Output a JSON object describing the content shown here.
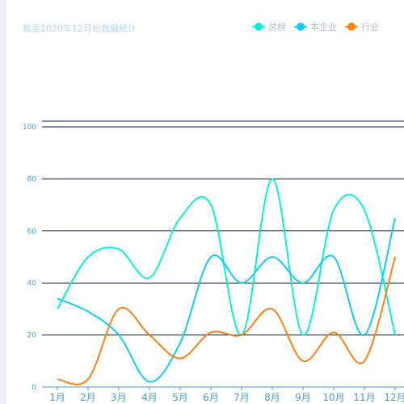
{
  "chart_data": {
    "type": "line",
    "subtitle": "截至2020年12月份数据统计",
    "categories": [
      "1月",
      "2月",
      "3月",
      "4月",
      "5月",
      "6月",
      "7月",
      "8月",
      "9月",
      "10月",
      "11月",
      "12月"
    ],
    "series": [
      {
        "name": "总榜",
        "color": "#13ecd6",
        "values": [
          30,
          50,
          53,
          42,
          65,
          70,
          20,
          80,
          20,
          68,
          68,
          20
        ]
      },
      {
        "name": "本企业",
        "color": "#19c8f0",
        "values": [
          34,
          29,
          20,
          2,
          17,
          50,
          40,
          50,
          40,
          50,
          20,
          65
        ]
      },
      {
        "name": "行业",
        "color": "#f5841f",
        "values": [
          3,
          3,
          30,
          20,
          11,
          21,
          20,
          30,
          10,
          21,
          10,
          50
        ]
      }
    ],
    "yticks": [
      0,
      20,
      40,
      60,
      80,
      100
    ],
    "ylim": [
      0,
      100
    ],
    "grid": true,
    "legend_position": "top-right"
  }
}
